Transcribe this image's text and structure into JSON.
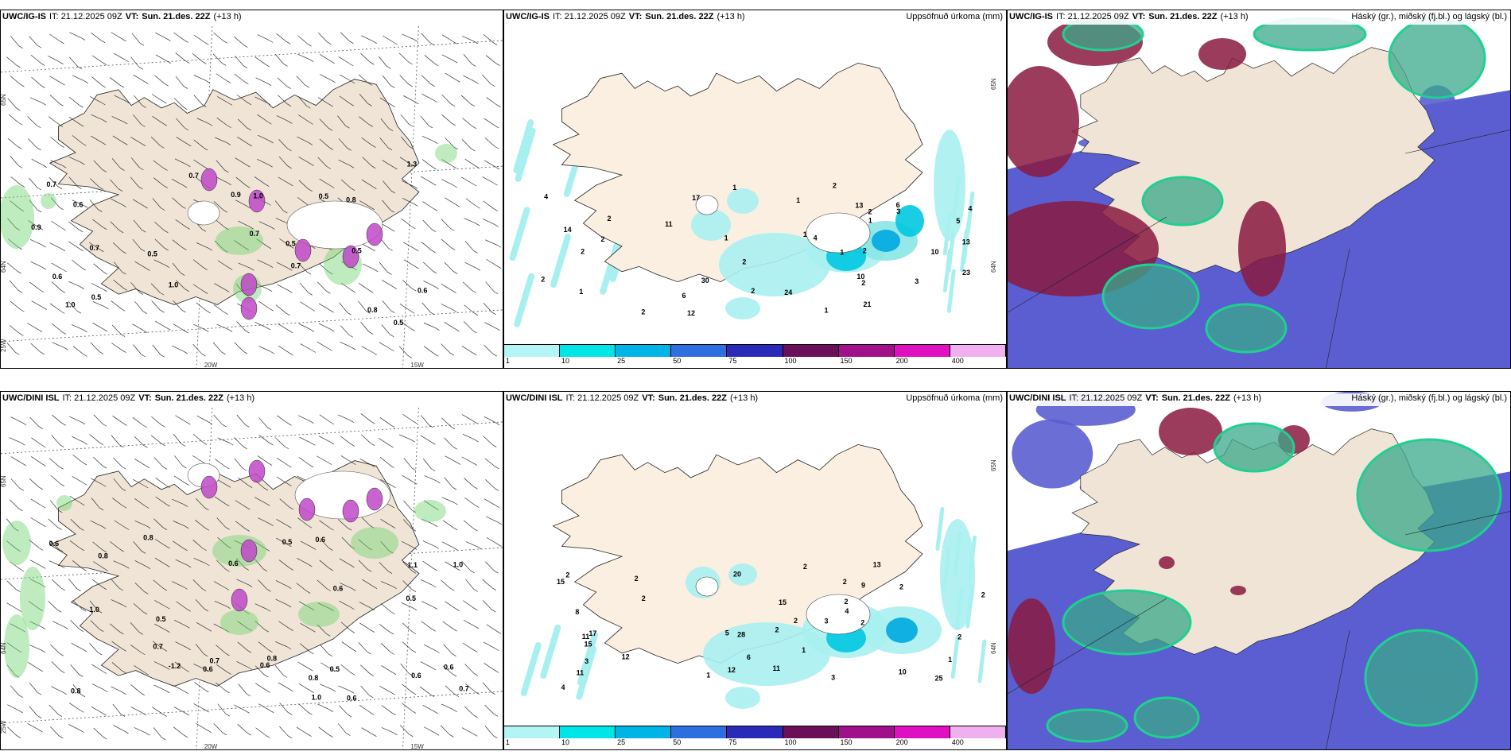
{
  "panels": {
    "ig_wind": {
      "model": "UWC/IG-IS",
      "it": "IT: 21.12.2025 09Z",
      "vt_label": "VT:",
      "vt": "Sun. 21.des. 22Z",
      "lead": "(+13 h)",
      "title": ""
    },
    "ig_precip": {
      "model": "UWC/IG-IS",
      "it": "IT: 21.12.2025 09Z",
      "vt_label": "VT:",
      "vt": "Sun. 21.des. 22Z",
      "lead": "(+13 h)",
      "title": "Uppsöfnuð úrkoma (mm)"
    },
    "ig_cloud": {
      "model": "UWC/IG-IS",
      "it": "IT: 21.12.2025 09Z",
      "vt_label": "VT:",
      "vt": "Sun. 21.des. 22Z",
      "lead": "(+13 h)",
      "title": "Háský (gr.), miðský (fj.bl.) og lágský (bl.)"
    },
    "dini_wind": {
      "model": "UWC/DINI ISL",
      "it": "IT: 21.12.2025 09Z",
      "vt_label": "VT:",
      "vt": "Sun. 21.des. 22Z",
      "lead": "(+13 h)",
      "title": ""
    },
    "dini_precip": {
      "model": "UWC/DINI ISL",
      "it": "IT: 21.12.2025 09Z",
      "vt_label": "VT:",
      "vt": "Sun. 21.des. 22Z",
      "lead": "(+13 h)",
      "title": "Uppsöfnuð úrkoma (mm)"
    },
    "dini_cloud": {
      "model": "UWC/DINI ISL",
      "it": "IT: 21.12.2025 09Z",
      "vt_label": "VT:",
      "vt": "Sun. 21.des. 22Z",
      "lead": "(+13 h)",
      "title": "Háský (gr.), miðský (fj.bl.) og lágský (bl.)"
    }
  },
  "axes": {
    "lon_20": "20W",
    "lon_15": "15W",
    "lon_25": "25W",
    "lat_64": "64N",
    "lat_65": "65N",
    "lat_66": "66N"
  },
  "legend": {
    "colors": [
      "#b3f5f5",
      "#00e6e6",
      "#00b4e6",
      "#2e6fe0",
      "#2a2ab8",
      "#6a0f5a",
      "#a0108a",
      "#e010c0",
      "#f0b0f0"
    ],
    "ticks": [
      "1",
      "10",
      "25",
      "50",
      "75",
      "100",
      "150",
      "200",
      "400"
    ]
  },
  "wind_labels_top": [
    "0.5",
    "0.7",
    "0.7",
    "0.7",
    "0.6",
    "0.6",
    "0.5",
    "0.5",
    "0.8",
    "0.9",
    "0.5",
    "0.8",
    "1.0",
    "0.7",
    "0.5",
    "0.6",
    "0.5",
    "0.7",
    "0.9",
    "1.0",
    "1.3",
    "1.0"
  ],
  "wind_labels_bottom": [
    "0.6",
    "0.6",
    "0.8",
    "0.5",
    "0.5",
    "0.6",
    "0.6",
    "0.7",
    "0.8",
    "0.8",
    "1.0",
    "0.5",
    "0.6",
    "0.6",
    "0.7",
    "0.8",
    "0.6",
    "1.1",
    "-1.2",
    "0.8",
    "1.0",
    "1.0",
    "0.7",
    "0.6",
    "0.6",
    "0.5"
  ],
  "precip_labels_top": [
    "13",
    "1",
    "2",
    "2",
    "2",
    "2",
    "2",
    "1",
    "1",
    "4",
    "4",
    "1",
    "2",
    "10",
    "11",
    "14",
    "6",
    "1",
    "2",
    "10",
    "12",
    "23",
    "13",
    "17",
    "24",
    "3",
    "2",
    "30",
    "21",
    "2",
    "2",
    "5",
    "6",
    "4",
    "3",
    "1",
    "1",
    "2",
    "1"
  ],
  "precip_labels_bottom": [
    "13",
    "2",
    "2",
    "2",
    "2",
    "2",
    "4",
    "1",
    "11",
    "12",
    "15",
    "3",
    "12",
    "15",
    "17",
    "11",
    "11",
    "28",
    "15",
    "25",
    "20",
    "8",
    "6",
    "5",
    "2",
    "1",
    "9",
    "10",
    "2",
    "4",
    "3",
    "2",
    "3",
    "2",
    "2",
    "1",
    "2",
    "2"
  ]
}
